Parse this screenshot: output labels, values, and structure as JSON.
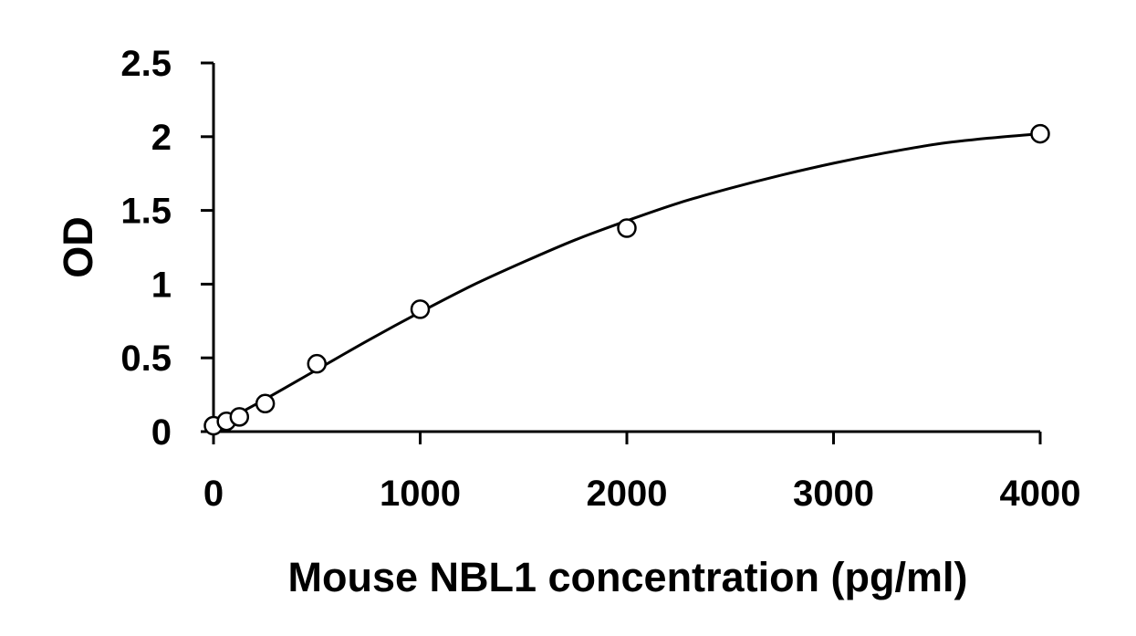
{
  "chart_data": {
    "type": "scatter",
    "title": "",
    "xlabel": "Mouse NBL1 concentration (pg/ml)",
    "ylabel": "OD",
    "xlim": [
      0,
      4000
    ],
    "ylim": [
      0,
      2.5
    ],
    "x_ticks": [
      0,
      1000,
      2000,
      3000,
      4000
    ],
    "x_tick_labels": [
      "0",
      "1000",
      "2000",
      "3000",
      "4000"
    ],
    "y_ticks": [
      0,
      0.5,
      1,
      1.5,
      2,
      2.5
    ],
    "y_tick_labels": [
      "0",
      "0.5",
      "1",
      "1.5",
      "2",
      "2.5"
    ],
    "grid": false,
    "legend": "none",
    "series": [
      {
        "marker": "open-circle",
        "x": [
          0,
          62.5,
          125,
          250,
          500,
          1000,
          2000,
          4000
        ],
        "y": [
          0.04,
          0.07,
          0.1,
          0.19,
          0.46,
          0.83,
          1.38,
          2.02
        ]
      }
    ],
    "fit_curve": {
      "x": [
        0,
        250,
        500,
        750,
        1000,
        1250,
        1500,
        1750,
        2000,
        2250,
        2500,
        2750,
        3000,
        3250,
        3500,
        3750,
        4000
      ],
      "y": [
        0.03,
        0.22,
        0.42,
        0.62,
        0.81,
        0.99,
        1.15,
        1.3,
        1.43,
        1.55,
        1.65,
        1.74,
        1.82,
        1.89,
        1.95,
        1.99,
        2.02
      ]
    },
    "colors": {
      "axis": "#000000",
      "marker_stroke": "#000000",
      "marker_fill": "#ffffff",
      "curve": "#000000"
    }
  }
}
